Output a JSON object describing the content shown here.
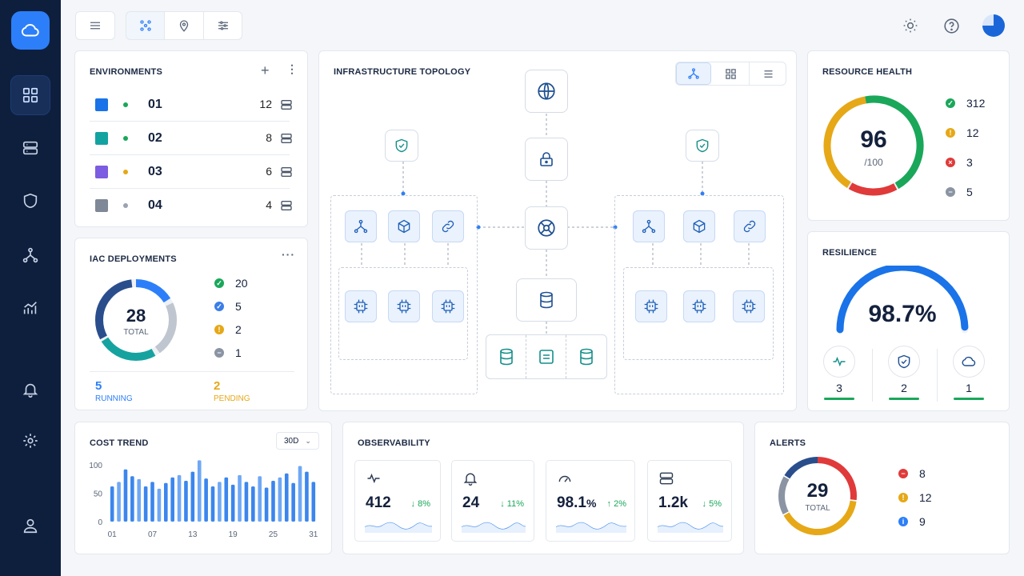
{
  "environments": {
    "title": "ENVIRONMENTS",
    "items": [
      {
        "name": "01",
        "count": "12",
        "color": "#1a73e8",
        "status_color": "#1aa75a"
      },
      {
        "name": "02",
        "count": "8",
        "color": "#12a3a0",
        "status_color": "#1aa75a"
      },
      {
        "name": "03",
        "count": "6",
        "color": "#7c5ce0",
        "status_color": "#e6a817"
      },
      {
        "name": "04",
        "count": "4",
        "color": "#7e8896",
        "status_color": "#9aa3b0"
      }
    ]
  },
  "iac": {
    "title": "IAC DEPLOYMENTS",
    "total": "28",
    "total_label": "TOTAL",
    "legend": [
      {
        "value": "20",
        "color": "#1aa75a",
        "icon": "check-icon"
      },
      {
        "value": "5",
        "color": "#3b7ee8",
        "icon": "check-icon"
      },
      {
        "value": "2",
        "color": "#e6a817",
        "icon": "warning-icon"
      },
      {
        "value": "1",
        "color": "#8a94a3",
        "icon": "minus-icon"
      }
    ],
    "running": "5",
    "running_label": "RUNNING",
    "pending": "2",
    "pending_label": "PENDING"
  },
  "topology": {
    "title": "INFRASTRUCTURE TOPOLOGY"
  },
  "health": {
    "title": "RESOURCE HEALTH",
    "score": "96",
    "score_sub": "/100",
    "legend": [
      {
        "value": "312",
        "color": "#1aa75a",
        "icon": "check-icon"
      },
      {
        "value": "12",
        "color": "#e6a817",
        "icon": "warning-icon"
      },
      {
        "value": "3",
        "color": "#e03a3a",
        "icon": "error-icon"
      },
      {
        "value": "5",
        "color": "#8a94a3",
        "icon": "minus-icon"
      }
    ]
  },
  "resilience": {
    "title": "RESILIENCE",
    "value": "98.7%",
    "value_fraction": 0.987,
    "items": [
      {
        "icon": "pulse-icon",
        "value": "3"
      },
      {
        "icon": "shield-check-icon",
        "value": "2"
      },
      {
        "icon": "cloud-icon",
        "value": "1"
      }
    ]
  },
  "cost": {
    "title": "COST TREND",
    "range": "30D",
    "y_ticks": [
      "100",
      "50",
      "0"
    ],
    "x_ticks": [
      "01",
      "07",
      "13",
      "19",
      "25",
      "31"
    ]
  },
  "chart_data": {
    "type": "bar",
    "title": "COST TREND",
    "x": [
      1,
      2,
      3,
      4,
      5,
      6,
      7,
      8,
      9,
      10,
      11,
      12,
      13,
      14,
      15,
      16,
      17,
      18,
      19,
      20,
      21,
      22,
      23,
      24,
      25,
      26,
      27,
      28,
      29,
      30,
      31
    ],
    "values": [
      62,
      70,
      92,
      80,
      75,
      62,
      70,
      58,
      68,
      78,
      82,
      72,
      88,
      108,
      76,
      62,
      70,
      78,
      65,
      82,
      70,
      62,
      80,
      60,
      72,
      78,
      85,
      68,
      98,
      88,
      70
    ],
    "ylim": [
      0,
      110
    ],
    "y_ticks": [
      0,
      50,
      100
    ],
    "x_ticks": [
      "01",
      "07",
      "13",
      "19",
      "25",
      "31"
    ],
    "grid": false
  },
  "observability": {
    "title": "OBSERVABILITY",
    "metrics": [
      {
        "icon": "pulse-icon",
        "value": "412",
        "delta": "↓ 8%"
      },
      {
        "icon": "bell-icon",
        "value": "24",
        "delta": "↓ 11%"
      },
      {
        "icon": "gauge-icon",
        "value": "98.1",
        "unit": "%",
        "delta": "↑ 2%"
      },
      {
        "icon": "server-icon",
        "value": "1.2k",
        "delta": "↓ 5%"
      }
    ]
  },
  "alerts": {
    "title": "ALERTS",
    "total": "29",
    "total_label": "TOTAL",
    "legend": [
      {
        "value": "8",
        "color": "#e03a3a",
        "icon": "minus-icon"
      },
      {
        "value": "12",
        "color": "#e6a817",
        "icon": "warning-icon"
      },
      {
        "value": "9",
        "color": "#2d7ff9",
        "icon": "info-icon"
      }
    ]
  },
  "colors": {
    "accent": "#2d7ff9",
    "sidebar": "#0e1f3d",
    "ok": "#1aa75a",
    "warn": "#e6a817",
    "error": "#e03a3a"
  }
}
